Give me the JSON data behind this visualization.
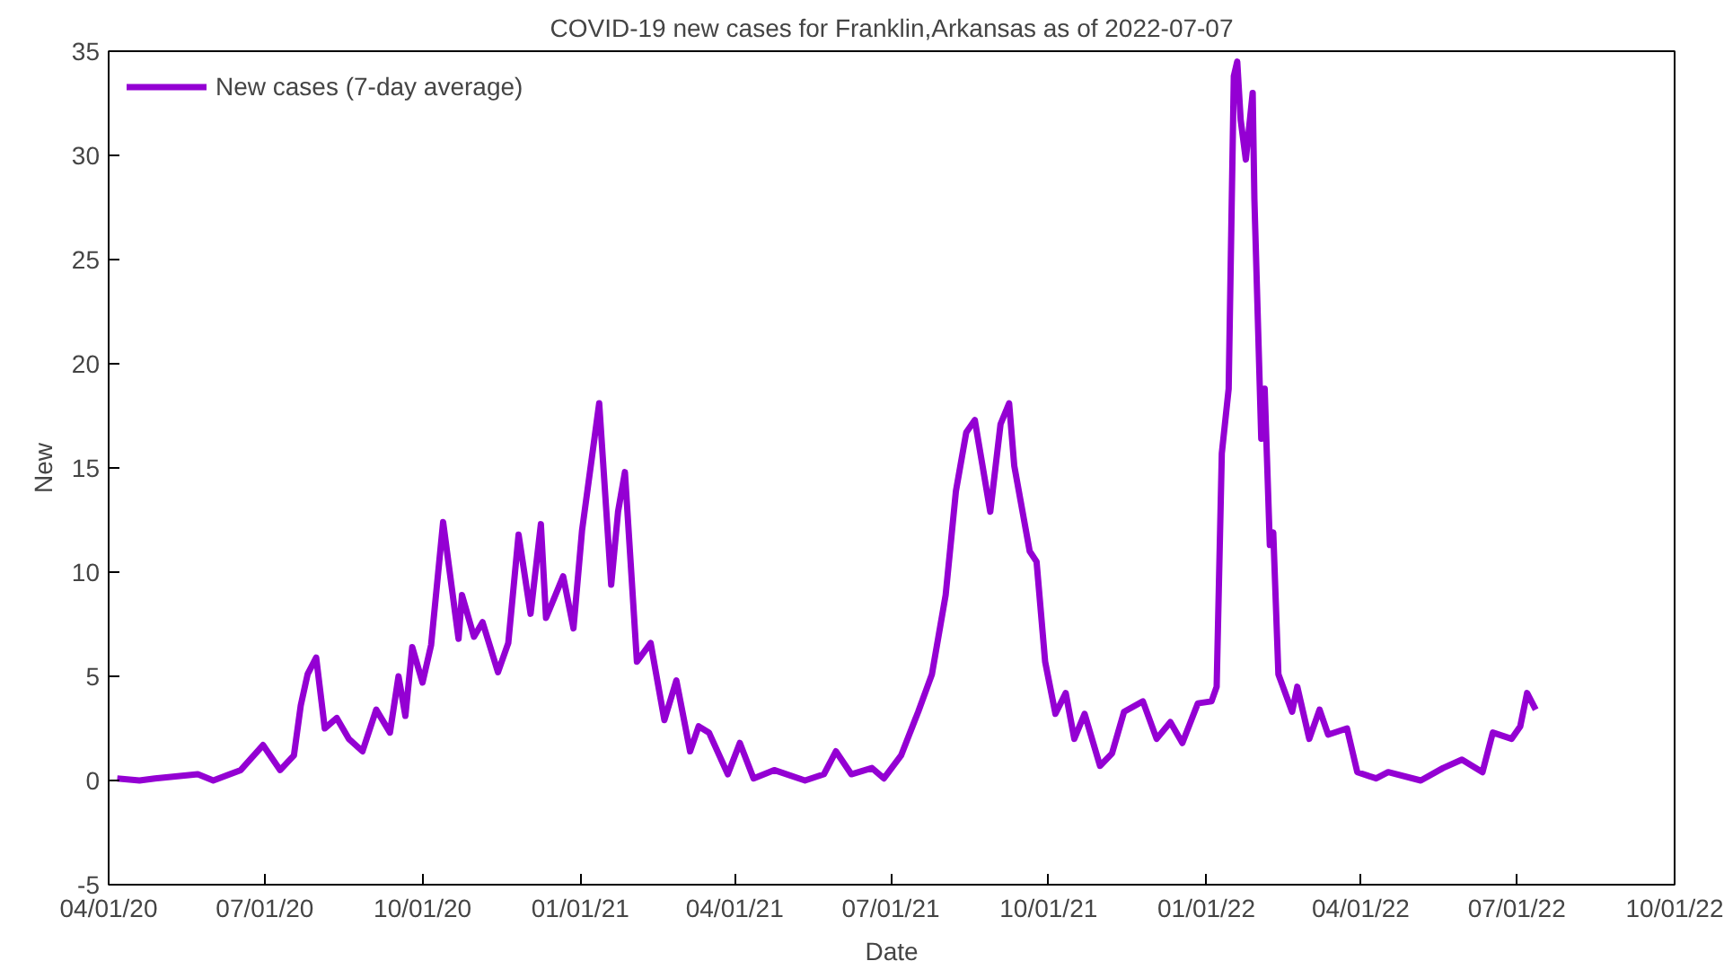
{
  "chart_data": {
    "type": "line",
    "title": "COVID-19 new cases for Franklin,Arkansas as of 2022-07-07",
    "xlabel": "Date",
    "ylabel": "New",
    "x": [
      "2020-04-06",
      "2020-04-19",
      "2020-04-28",
      "2020-05-23",
      "2020-06-01",
      "2020-06-17",
      "2020-06-30",
      "2020-07-10",
      "2020-07-18",
      "2020-07-22",
      "2020-07-26",
      "2020-07-31",
      "2020-08-05",
      "2020-08-12",
      "2020-08-19",
      "2020-08-27",
      "2020-09-04",
      "2020-09-12",
      "2020-09-17",
      "2020-09-21",
      "2020-09-25",
      "2020-10-01",
      "2020-10-06",
      "2020-10-13",
      "2020-10-22",
      "2020-10-24",
      "2020-10-31",
      "2020-11-05",
      "2020-11-14",
      "2020-11-20",
      "2020-11-26",
      "2020-12-03",
      "2020-12-09",
      "2020-12-12",
      "2020-12-22",
      "2020-12-28",
      "2021-01-02",
      "2021-01-12",
      "2021-01-19",
      "2021-01-23",
      "2021-01-27",
      "2021-02-03",
      "2021-02-11",
      "2021-02-19",
      "2021-02-26",
      "2021-03-06",
      "2021-03-11",
      "2021-03-17",
      "2021-03-28",
      "2021-04-04",
      "2021-04-12",
      "2021-04-24",
      "2021-05-12",
      "2021-05-23",
      "2021-05-30",
      "2021-06-08",
      "2021-06-20",
      "2021-06-27",
      "2021-07-07",
      "2021-07-17",
      "2021-07-25",
      "2021-08-02",
      "2021-08-08",
      "2021-08-14",
      "2021-08-19",
      "2021-08-28",
      "2021-09-03",
      "2021-09-08",
      "2021-09-11",
      "2021-09-20",
      "2021-09-24",
      "2021-09-29",
      "2021-10-05",
      "2021-10-11",
      "2021-10-16",
      "2021-10-22",
      "2021-10-31",
      "2021-11-07",
      "2021-11-14",
      "2021-11-25",
      "2021-12-03",
      "2021-12-11",
      "2021-12-18",
      "2021-12-27",
      "2022-01-04",
      "2022-01-07",
      "2022-01-10",
      "2022-01-14",
      "2022-01-17",
      "2022-01-19",
      "2022-01-21",
      "2022-01-24",
      "2022-01-28",
      "2022-01-29",
      "2022-02-02",
      "2022-02-04",
      "2022-02-07",
      "2022-02-09",
      "2022-02-12",
      "2022-02-20",
      "2022-02-23",
      "2022-03-02",
      "2022-03-08",
      "2022-03-13",
      "2022-03-24",
      "2022-03-30",
      "2022-04-10",
      "2022-04-17",
      "2022-05-06",
      "2022-05-19",
      "2022-05-30",
      "2022-06-11",
      "2022-06-17",
      "2022-06-28",
      "2022-07-03",
      "2022-07-07",
      "2022-07-12"
    ],
    "series": [
      {
        "name": "New cases (7-day average)",
        "color": "#9400d3",
        "values": [
          0.1,
          0,
          0.1,
          0.3,
          0,
          0.5,
          1.7,
          0.5,
          1.2,
          3.6,
          5.1,
          5.9,
          2.5,
          3.0,
          2.0,
          1.4,
          3.4,
          2.3,
          5.0,
          3.1,
          6.4,
          4.7,
          6.5,
          12.4,
          6.8,
          8.9,
          6.9,
          7.6,
          5.2,
          6.6,
          11.8,
          8.0,
          12.3,
          7.8,
          9.8,
          7.3,
          12.0,
          18.1,
          9.4,
          12.9,
          14.8,
          5.7,
          6.6,
          2.9,
          4.8,
          1.4,
          2.6,
          2.3,
          0.3,
          1.8,
          0.1,
          0.5,
          0,
          0.3,
          1.4,
          0.3,
          0.6,
          0.1,
          1.2,
          3.3,
          5.1,
          8.9,
          13.9,
          16.7,
          17.3,
          12.9,
          17.1,
          18.1,
          15.1,
          11.0,
          10.5,
          5.7,
          3.2,
          4.2,
          2.0,
          3.2,
          0.7,
          1.3,
          3.3,
          3.8,
          2.0,
          2.8,
          1.8,
          3.7,
          3.8,
          4.5,
          15.7,
          18.8,
          33.8,
          34.5,
          31.7,
          29.8,
          33.0,
          27.9,
          16.4,
          18.8,
          11.3,
          11.9,
          5.1,
          3.3,
          4.5,
          2.0,
          3.4,
          2.2,
          2.5,
          0.4,
          0.1,
          0.4,
          0,
          0.6,
          1.0,
          0.4,
          2.3,
          2.0,
          2.6,
          4.2,
          3.4
        ]
      }
    ],
    "xlim": [
      "2020-04-01",
      "2022-10-01"
    ],
    "xticks": [
      {
        "value": "2020-04-01",
        "label": "04/01/20"
      },
      {
        "value": "2020-07-01",
        "label": "07/01/20"
      },
      {
        "value": "2020-10-01",
        "label": "10/01/20"
      },
      {
        "value": "2021-01-01",
        "label": "01/01/21"
      },
      {
        "value": "2021-04-01",
        "label": "04/01/21"
      },
      {
        "value": "2021-07-01",
        "label": "07/01/21"
      },
      {
        "value": "2021-10-01",
        "label": "10/01/21"
      },
      {
        "value": "2022-01-01",
        "label": "01/01/22"
      },
      {
        "value": "2022-04-01",
        "label": "04/01/22"
      },
      {
        "value": "2022-07-01",
        "label": "07/01/22"
      },
      {
        "value": "2022-10-01",
        "label": "10/01/22"
      }
    ],
    "ylim": [
      -5,
      35
    ],
    "yticks": [
      -5,
      0,
      5,
      10,
      15,
      20,
      25,
      30,
      35
    ],
    "grid": false,
    "legend": "top left",
    "marker": "none",
    "line_style": "solid"
  }
}
